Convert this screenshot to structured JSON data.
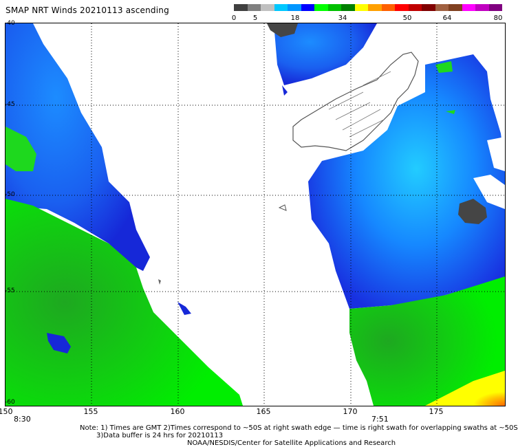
{
  "title": "SMAP NRT Winds 20210113 ascending",
  "scale": {
    "labels": [
      "0",
      "5",
      "18",
      "34",
      "50",
      "64",
      "80"
    ],
    "colors": [
      "#404040",
      "#808080",
      "#c0c0c0",
      "#00c8ff",
      "#0096ff",
      "#0000ff",
      "#00ff00",
      "#00c000",
      "#008000",
      "#ffff00",
      "#ffa000",
      "#ff6000",
      "#ff0000",
      "#c00000",
      "#800000",
      "#a06040",
      "#804020",
      "#ff00ff",
      "#c000c0",
      "#800080"
    ]
  },
  "lon_labels": [
    "150",
    "155",
    "160",
    "165",
    "170",
    "175"
  ],
  "lat_labels": [
    "-40",
    "-45",
    "-50",
    "-55",
    "-60"
  ],
  "times": [
    "8:30",
    "7:51"
  ],
  "notes": {
    "line1": "Note: 1) Times are GMT 2)Times correspond to ~50S at right swath edge — time is right swath for overlapping swaths at ~50S",
    "line2": "3)Data buffer is 24 hrs for 20210113",
    "line3": "NOAA/NESDIS/Center for Satellite Applications and Research"
  }
}
